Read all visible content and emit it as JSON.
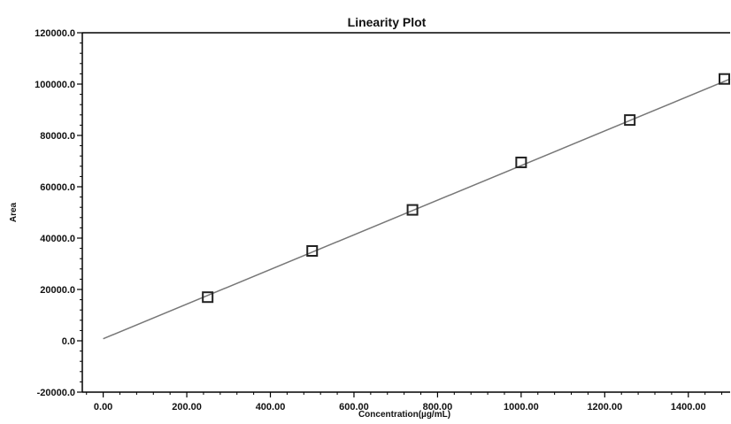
{
  "chart_data": {
    "type": "scatter",
    "title": "Linearity Plot",
    "xlabel": "Concentration(µg/mL)",
    "ylabel": "Area",
    "xlim": [
      -50,
      1500
    ],
    "ylim": [
      -20000,
      120000
    ],
    "x_ticks": [
      0,
      200,
      400,
      600,
      800,
      1000,
      1200,
      1400
    ],
    "x_tick_labels": [
      "0.00",
      "200.00",
      "400.00",
      "600.00",
      "800.00",
      "1000.00",
      "1200.00",
      "1400.00"
    ],
    "y_ticks": [
      -20000,
      0,
      20000,
      40000,
      60000,
      80000,
      100000,
      120000
    ],
    "y_tick_labels": [
      "-20000.0",
      "0.0",
      "20000.0",
      "40000.0",
      "60000.0",
      "80000.0",
      "100000.0",
      "120000.0"
    ],
    "grid": false,
    "legend": "none",
    "series": [
      {
        "marker": "hollow-square",
        "x": [
          250,
          500,
          740,
          1000,
          1260,
          1500
        ],
        "y": [
          17000,
          35000,
          51000,
          69500,
          86000,
          102000
        ]
      }
    ],
    "fit_line": {
      "x": [
        0,
        1500
      ],
      "y": [
        800,
        102000
      ]
    },
    "colors": {
      "marker": "#222222",
      "fit_line": "#777777",
      "axis": "#000000"
    }
  }
}
